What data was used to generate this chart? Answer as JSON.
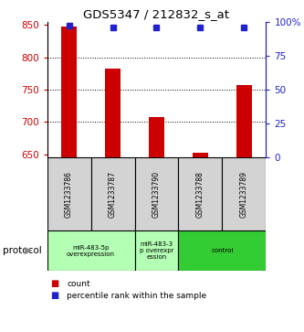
{
  "title": "GDS5347 / 212832_s_at",
  "samples": [
    "GSM1233786",
    "GSM1233787",
    "GSM1233790",
    "GSM1233788",
    "GSM1233789"
  ],
  "bar_values": [
    848,
    783,
    708,
    652,
    757
  ],
  "percentile_values": [
    97,
    96,
    96,
    96,
    96
  ],
  "ylim_left": [
    645,
    855
  ],
  "ylim_right": [
    0,
    100
  ],
  "yticks_left": [
    650,
    700,
    750,
    800,
    850
  ],
  "yticks_right": [
    0,
    25,
    50,
    75,
    100
  ],
  "bar_color": "#cc0000",
  "dot_color": "#2222cc",
  "bar_bottom": 645,
  "dotted_grid_values": [
    700,
    750,
    800
  ],
  "background_color": "#ffffff",
  "plot_bg_color": "#ffffff",
  "sample_box_color": "#d3d3d3",
  "left_tick_color": "#cc0000",
  "right_tick_color": "#2222cc",
  "protocol_groups": [
    {
      "start": 0,
      "end": 1,
      "label": "miR-483-5p\noverexpression",
      "color": "#b3ffb3"
    },
    {
      "start": 2,
      "end": 2,
      "label": "miR-483-3\np overexpr\nession",
      "color": "#b3ffb3"
    },
    {
      "start": 3,
      "end": 4,
      "label": "control",
      "color": "#33cc33"
    }
  ]
}
